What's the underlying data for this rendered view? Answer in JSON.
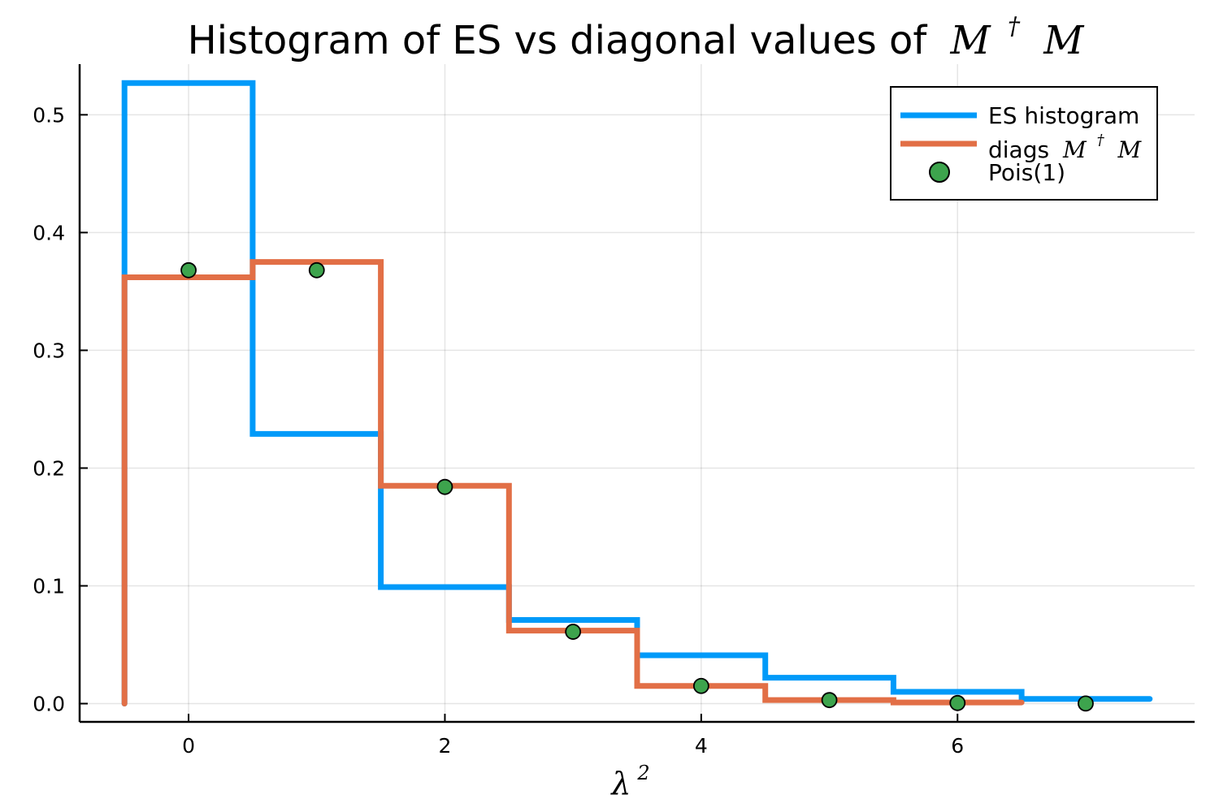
{
  "chart_data": {
    "type": "line",
    "title_text": "Histogram of ES vs diagonal values of",
    "title_math": {
      "base": "M",
      "sup": "†",
      "tail": "M"
    },
    "xlabel": {
      "base": "λ",
      "sup": "2"
    },
    "xlim": [
      -0.85,
      7.85
    ],
    "ylim": [
      -0.0155,
      0.543
    ],
    "xticks": [
      {
        "v": 0,
        "label": "0"
      },
      {
        "v": 2,
        "label": "2"
      },
      {
        "v": 4,
        "label": "4"
      },
      {
        "v": 6,
        "label": "6"
      }
    ],
    "yticks": [
      {
        "v": 0.0,
        "label": "0.0"
      },
      {
        "v": 0.1,
        "label": "0.1"
      },
      {
        "v": 0.2,
        "label": "0.2"
      },
      {
        "v": 0.3,
        "label": "0.3"
      },
      {
        "v": 0.4,
        "label": "0.4"
      },
      {
        "v": 0.5,
        "label": "0.5"
      }
    ],
    "grid": true,
    "legend_position": "top-right",
    "series": [
      {
        "name": "ES histogram",
        "kind": "step",
        "color": "#009af9",
        "bin_edges": [
          -0.5,
          0.5,
          1.5,
          2.5,
          3.5,
          4.5,
          5.5,
          6.5,
          7.5
        ],
        "values": [
          0.527,
          0.229,
          0.099,
          0.071,
          0.041,
          0.022,
          0.01,
          0.004
        ]
      },
      {
        "name": "diags",
        "name_math": {
          "base": "M",
          "sup": "†",
          "tail": "M"
        },
        "kind": "step",
        "color": "#e26f46",
        "bin_edges": [
          -0.5,
          0.5,
          1.5,
          2.5,
          3.5,
          4.5,
          5.5,
          6.5
        ],
        "values": [
          0.362,
          0.375,
          0.185,
          0.062,
          0.015,
          0.003,
          0.001
        ]
      },
      {
        "name": "Pois(1)",
        "kind": "scatter",
        "color": "#3da44d",
        "x": [
          0,
          1,
          2,
          3,
          4,
          5,
          6,
          7
        ],
        "y": [
          0.368,
          0.368,
          0.184,
          0.061,
          0.015,
          0.003,
          0.0005,
          0.0001
        ]
      }
    ]
  }
}
